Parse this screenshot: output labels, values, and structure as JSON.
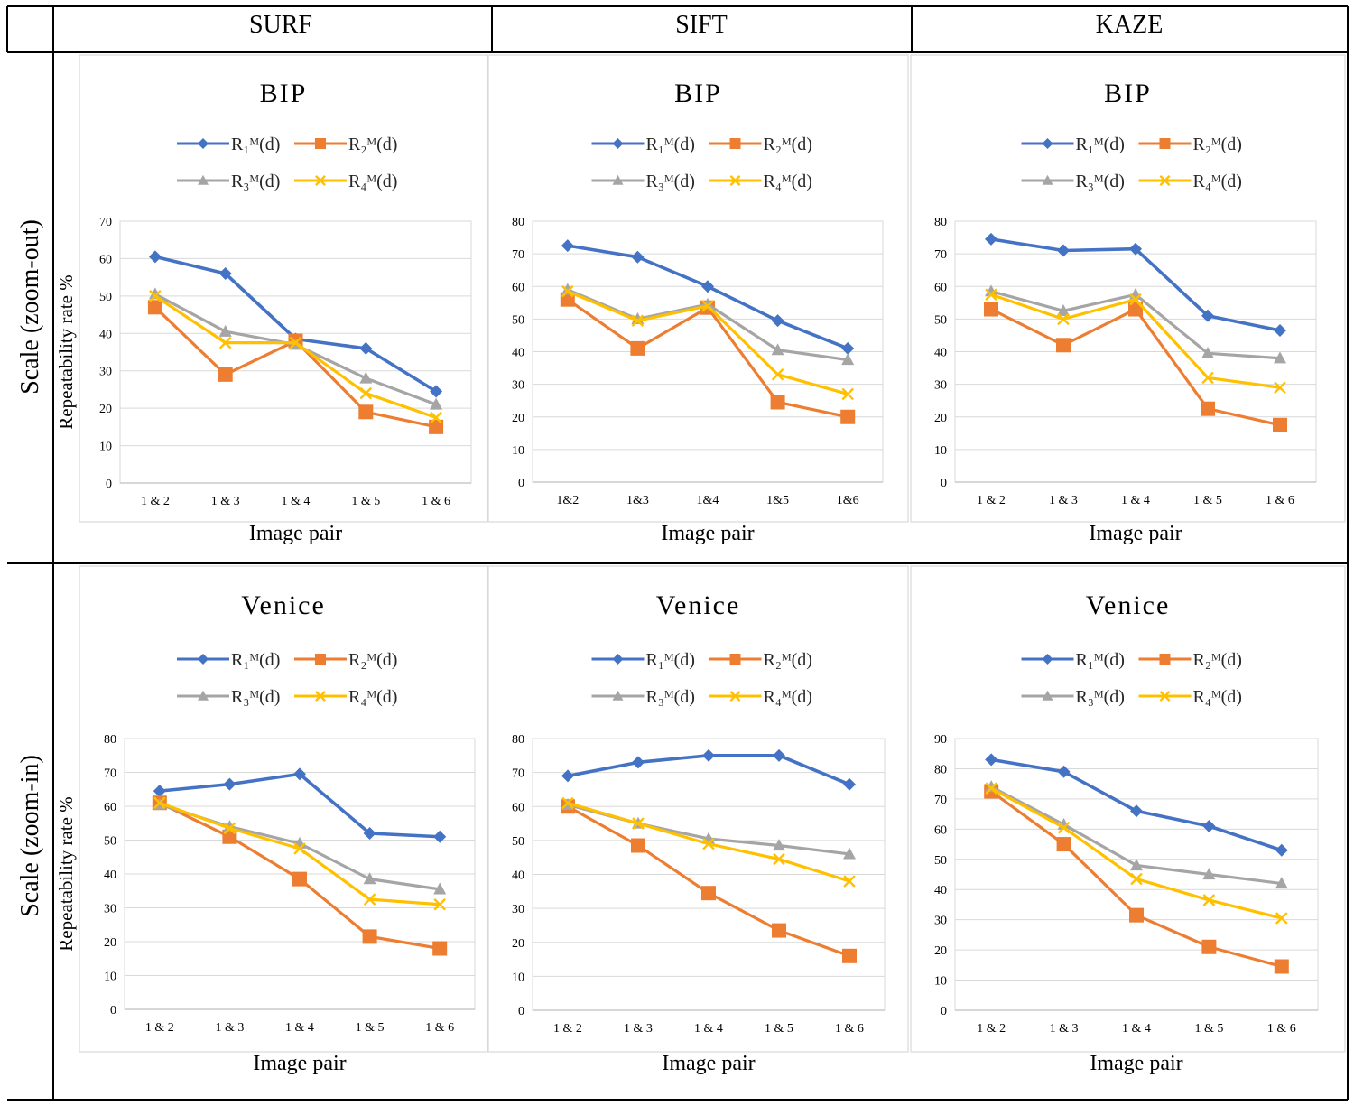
{
  "table": {
    "columns": [
      "SURF",
      "SIFT",
      "KAZE"
    ],
    "rows": [
      "Scale (zoom-out)",
      "Scale (zoom-in)"
    ]
  },
  "legend": {
    "names": [
      "R₁ᴹ(d)",
      "R₂ᴹ(d)",
      "R₃ᴹ(d)",
      "R₄ᴹ(d)"
    ],
    "colors": [
      "#4472c4",
      "#ed7d31",
      "#a5a5a5",
      "#ffc000"
    ],
    "markers": [
      "diamond",
      "square",
      "triangle",
      "x"
    ]
  },
  "chart_data": [
    {
      "type": "line",
      "title": "BIP",
      "xlabel": "Image pair",
      "ylabel": "Repeatability rate %",
      "ylim": [
        0,
        70
      ],
      "yticks": [
        0,
        10,
        20,
        30,
        40,
        50,
        60,
        70
      ],
      "categories": [
        "1 & 2",
        "1 & 3",
        "1 & 4",
        "1 & 5",
        "1 & 6"
      ],
      "series": [
        {
          "name": "R₁ᴹ(d)",
          "values": [
            60.5,
            56,
            38.5,
            36,
            24.5
          ]
        },
        {
          "name": "R₂ᴹ(d)",
          "values": [
            47,
            29,
            38,
            19,
            15
          ]
        },
        {
          "name": "R₃ᴹ(d)",
          "values": [
            50.5,
            40.5,
            37,
            28,
            21
          ]
        },
        {
          "name": "R₄ᴹ(d)",
          "values": [
            50,
            37.5,
            37.5,
            24,
            17.5
          ]
        }
      ]
    },
    {
      "type": "line",
      "title": "BIP",
      "xlabel": "Image pair",
      "ylabel": "",
      "ylim": [
        0,
        80
      ],
      "yticks": [
        0,
        10,
        20,
        30,
        40,
        50,
        60,
        70,
        80
      ],
      "categories": [
        "1&2",
        "1&3",
        "1&4",
        "1&5",
        "1&6"
      ],
      "series": [
        {
          "name": "R₁ᴹ(d)",
          "values": [
            72.5,
            69,
            60,
            49.5,
            41
          ]
        },
        {
          "name": "R₂ᴹ(d)",
          "values": [
            56,
            41,
            53.5,
            24.5,
            20
          ]
        },
        {
          "name": "R₃ᴹ(d)",
          "values": [
            59,
            50,
            54.5,
            40.5,
            37.5
          ]
        },
        {
          "name": "R₄ᴹ(d)",
          "values": [
            58.5,
            49.5,
            54,
            33,
            27
          ]
        }
      ]
    },
    {
      "type": "line",
      "title": "BIP",
      "xlabel": "Image pair",
      "ylabel": "",
      "ylim": [
        0,
        80
      ],
      "yticks": [
        0,
        10,
        20,
        30,
        40,
        50,
        60,
        70,
        80
      ],
      "categories": [
        "1 & 2",
        "1 & 3",
        "1 & 4",
        "1 & 5",
        "1 & 6"
      ],
      "series": [
        {
          "name": "R₁ᴹ(d)",
          "values": [
            74.5,
            71,
            71.5,
            51,
            46.5
          ]
        },
        {
          "name": "R₂ᴹ(d)",
          "values": [
            53,
            42,
            53,
            22.5,
            17.5
          ]
        },
        {
          "name": "R₃ᴹ(d)",
          "values": [
            58.5,
            52.5,
            57.5,
            39.5,
            38
          ]
        },
        {
          "name": "R₄ᴹ(d)",
          "values": [
            57.5,
            50,
            56,
            32,
            29
          ]
        }
      ]
    },
    {
      "type": "line",
      "title": "Venice",
      "xlabel": "Image pair",
      "ylabel": "Repeatability rate %",
      "ylim": [
        0,
        80
      ],
      "yticks": [
        0,
        10,
        20,
        30,
        40,
        50,
        60,
        70,
        80
      ],
      "categories": [
        "1 & 2",
        "1 & 3",
        "1 & 4",
        "1 & 5",
        "1 & 6"
      ],
      "series": [
        {
          "name": "R₁ᴹ(d)",
          "values": [
            64.5,
            66.5,
            69.5,
            52,
            51
          ]
        },
        {
          "name": "R₂ᴹ(d)",
          "values": [
            61,
            51,
            38.5,
            21.5,
            18
          ]
        },
        {
          "name": "R₃ᴹ(d)",
          "values": [
            60.5,
            54,
            49,
            38.5,
            35.5
          ]
        },
        {
          "name": "R₄ᴹ(d)",
          "values": [
            61,
            53.5,
            47.5,
            32.5,
            31
          ]
        }
      ]
    },
    {
      "type": "line",
      "title": "Venice",
      "xlabel": "Image pair",
      "ylabel": "",
      "ylim": [
        0,
        80
      ],
      "yticks": [
        0,
        10,
        20,
        30,
        40,
        50,
        60,
        70,
        80
      ],
      "categories": [
        "1 & 2",
        "1 & 3",
        "1 & 4",
        "1 & 5",
        "1 & 6"
      ],
      "series": [
        {
          "name": "R₁ᴹ(d)",
          "values": [
            69,
            73,
            75,
            75,
            66.5
          ]
        },
        {
          "name": "R₂ᴹ(d)",
          "values": [
            60,
            48.5,
            34.5,
            23.5,
            16
          ]
        },
        {
          "name": "R₃ᴹ(d)",
          "values": [
            60.5,
            55,
            50.5,
            48.5,
            46
          ]
        },
        {
          "name": "R₄ᴹ(d)",
          "values": [
            61,
            55,
            49,
            44.5,
            38
          ]
        }
      ]
    },
    {
      "type": "line",
      "title": "Venice",
      "xlabel": "Image pair",
      "ylabel": "",
      "ylim": [
        0,
        90
      ],
      "yticks": [
        0,
        10,
        20,
        30,
        40,
        50,
        60,
        70,
        80,
        90
      ],
      "categories": [
        "1 & 2",
        "1 & 3",
        "1 & 4",
        "1 & 5",
        "1 & 6"
      ],
      "series": [
        {
          "name": "R₁ᴹ(d)",
          "values": [
            83,
            79,
            66,
            61,
            53
          ]
        },
        {
          "name": "R₂ᴹ(d)",
          "values": [
            72.5,
            55,
            31.5,
            21,
            14.5
          ]
        },
        {
          "name": "R₃ᴹ(d)",
          "values": [
            74,
            61.5,
            48,
            45,
            42
          ]
        },
        {
          "name": "R₄ᴹ(d)",
          "values": [
            73.5,
            60.5,
            43.5,
            36.5,
            30.5
          ]
        }
      ]
    }
  ]
}
